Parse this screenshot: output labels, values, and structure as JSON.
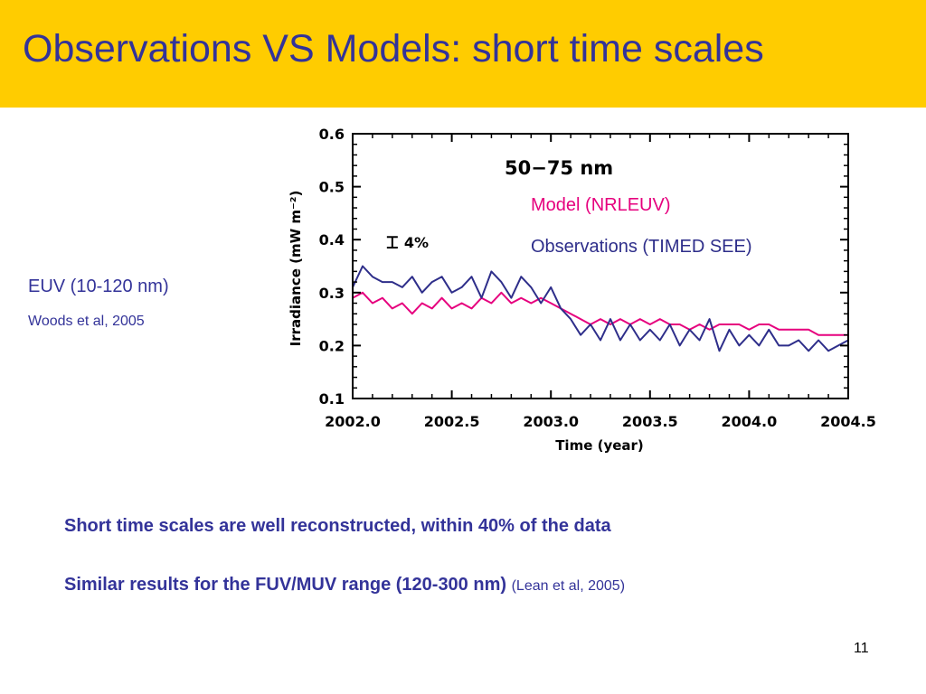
{
  "slide": {
    "title": "Observations VS Models: short time scales",
    "header_color": "#FFCC00",
    "side_label": "EUV (10-120 nm)",
    "side_citation": "Woods et al, 2005",
    "bullets": [
      "Short time scales are well reconstructed, within 40% of the data",
      "Similar results for the FUV/MUV range (120-300 nm)"
    ],
    "bullet2_reference": "(Lean et al, 2005)",
    "page_number": "11"
  },
  "chart_data": {
    "type": "line",
    "title": "50−75  nm",
    "xlabel": "Time (year)",
    "ylabel": "Irradiance  (mW  m⁻²)",
    "xlim": [
      2002.0,
      2004.5
    ],
    "ylim": [
      0.1,
      0.6
    ],
    "xticks": [
      "2002.0",
      "2002.5",
      "2003.0",
      "2003.5",
      "2004.0",
      "2004.5"
    ],
    "yticks": [
      "0.1",
      "0.2",
      "0.3",
      "0.4",
      "0.5",
      "0.6"
    ],
    "grid": false,
    "legend_position": "top-right",
    "error_bar": {
      "label": "4%",
      "x": 2002.2,
      "y_low": 0.385,
      "y_high": 0.405
    },
    "x": [
      2002.0,
      2002.05,
      2002.1,
      2002.15,
      2002.2,
      2002.25,
      2002.3,
      2002.35,
      2002.4,
      2002.45,
      2002.5,
      2002.55,
      2002.6,
      2002.65,
      2002.7,
      2002.75,
      2002.8,
      2002.85,
      2002.9,
      2002.95,
      2003.0,
      2003.05,
      2003.1,
      2003.15,
      2003.2,
      2003.25,
      2003.3,
      2003.35,
      2003.4,
      2003.45,
      2003.5,
      2003.55,
      2003.6,
      2003.65,
      2003.7,
      2003.75,
      2003.8,
      2003.85,
      2003.9,
      2003.95,
      2004.0,
      2004.05,
      2004.1,
      2004.15,
      2004.2,
      2004.25,
      2004.3,
      2004.35,
      2004.4,
      2004.45,
      2004.5
    ],
    "series": [
      {
        "name": "Model (NRLEUV)",
        "color": "#E6007E",
        "values": [
          0.29,
          0.3,
          0.28,
          0.29,
          0.27,
          0.28,
          0.26,
          0.28,
          0.27,
          0.29,
          0.27,
          0.28,
          0.27,
          0.29,
          0.28,
          0.3,
          0.28,
          0.29,
          0.28,
          0.29,
          0.28,
          0.27,
          0.26,
          0.25,
          0.24,
          0.25,
          0.24,
          0.25,
          0.24,
          0.25,
          0.24,
          0.25,
          0.24,
          0.24,
          0.23,
          0.24,
          0.23,
          0.24,
          0.24,
          0.24,
          0.23,
          0.24,
          0.24,
          0.23,
          0.23,
          0.23,
          0.23,
          0.22,
          0.22,
          0.22,
          0.22
        ]
      },
      {
        "name": "Observations (TIMED SEE)",
        "color": "#2E2E8A",
        "values": [
          0.31,
          0.35,
          0.33,
          0.32,
          0.32,
          0.31,
          0.33,
          0.3,
          0.32,
          0.33,
          0.3,
          0.31,
          0.33,
          0.29,
          0.34,
          0.32,
          0.29,
          0.33,
          0.31,
          0.28,
          0.31,
          0.27,
          0.25,
          0.22,
          0.24,
          0.21,
          0.25,
          0.21,
          0.24,
          0.21,
          0.23,
          0.21,
          0.24,
          0.2,
          0.23,
          0.21,
          0.25,
          0.19,
          0.23,
          0.2,
          0.22,
          0.2,
          0.23,
          0.2,
          0.2,
          0.21,
          0.19,
          0.21,
          0.19,
          0.2,
          0.21
        ]
      }
    ]
  }
}
